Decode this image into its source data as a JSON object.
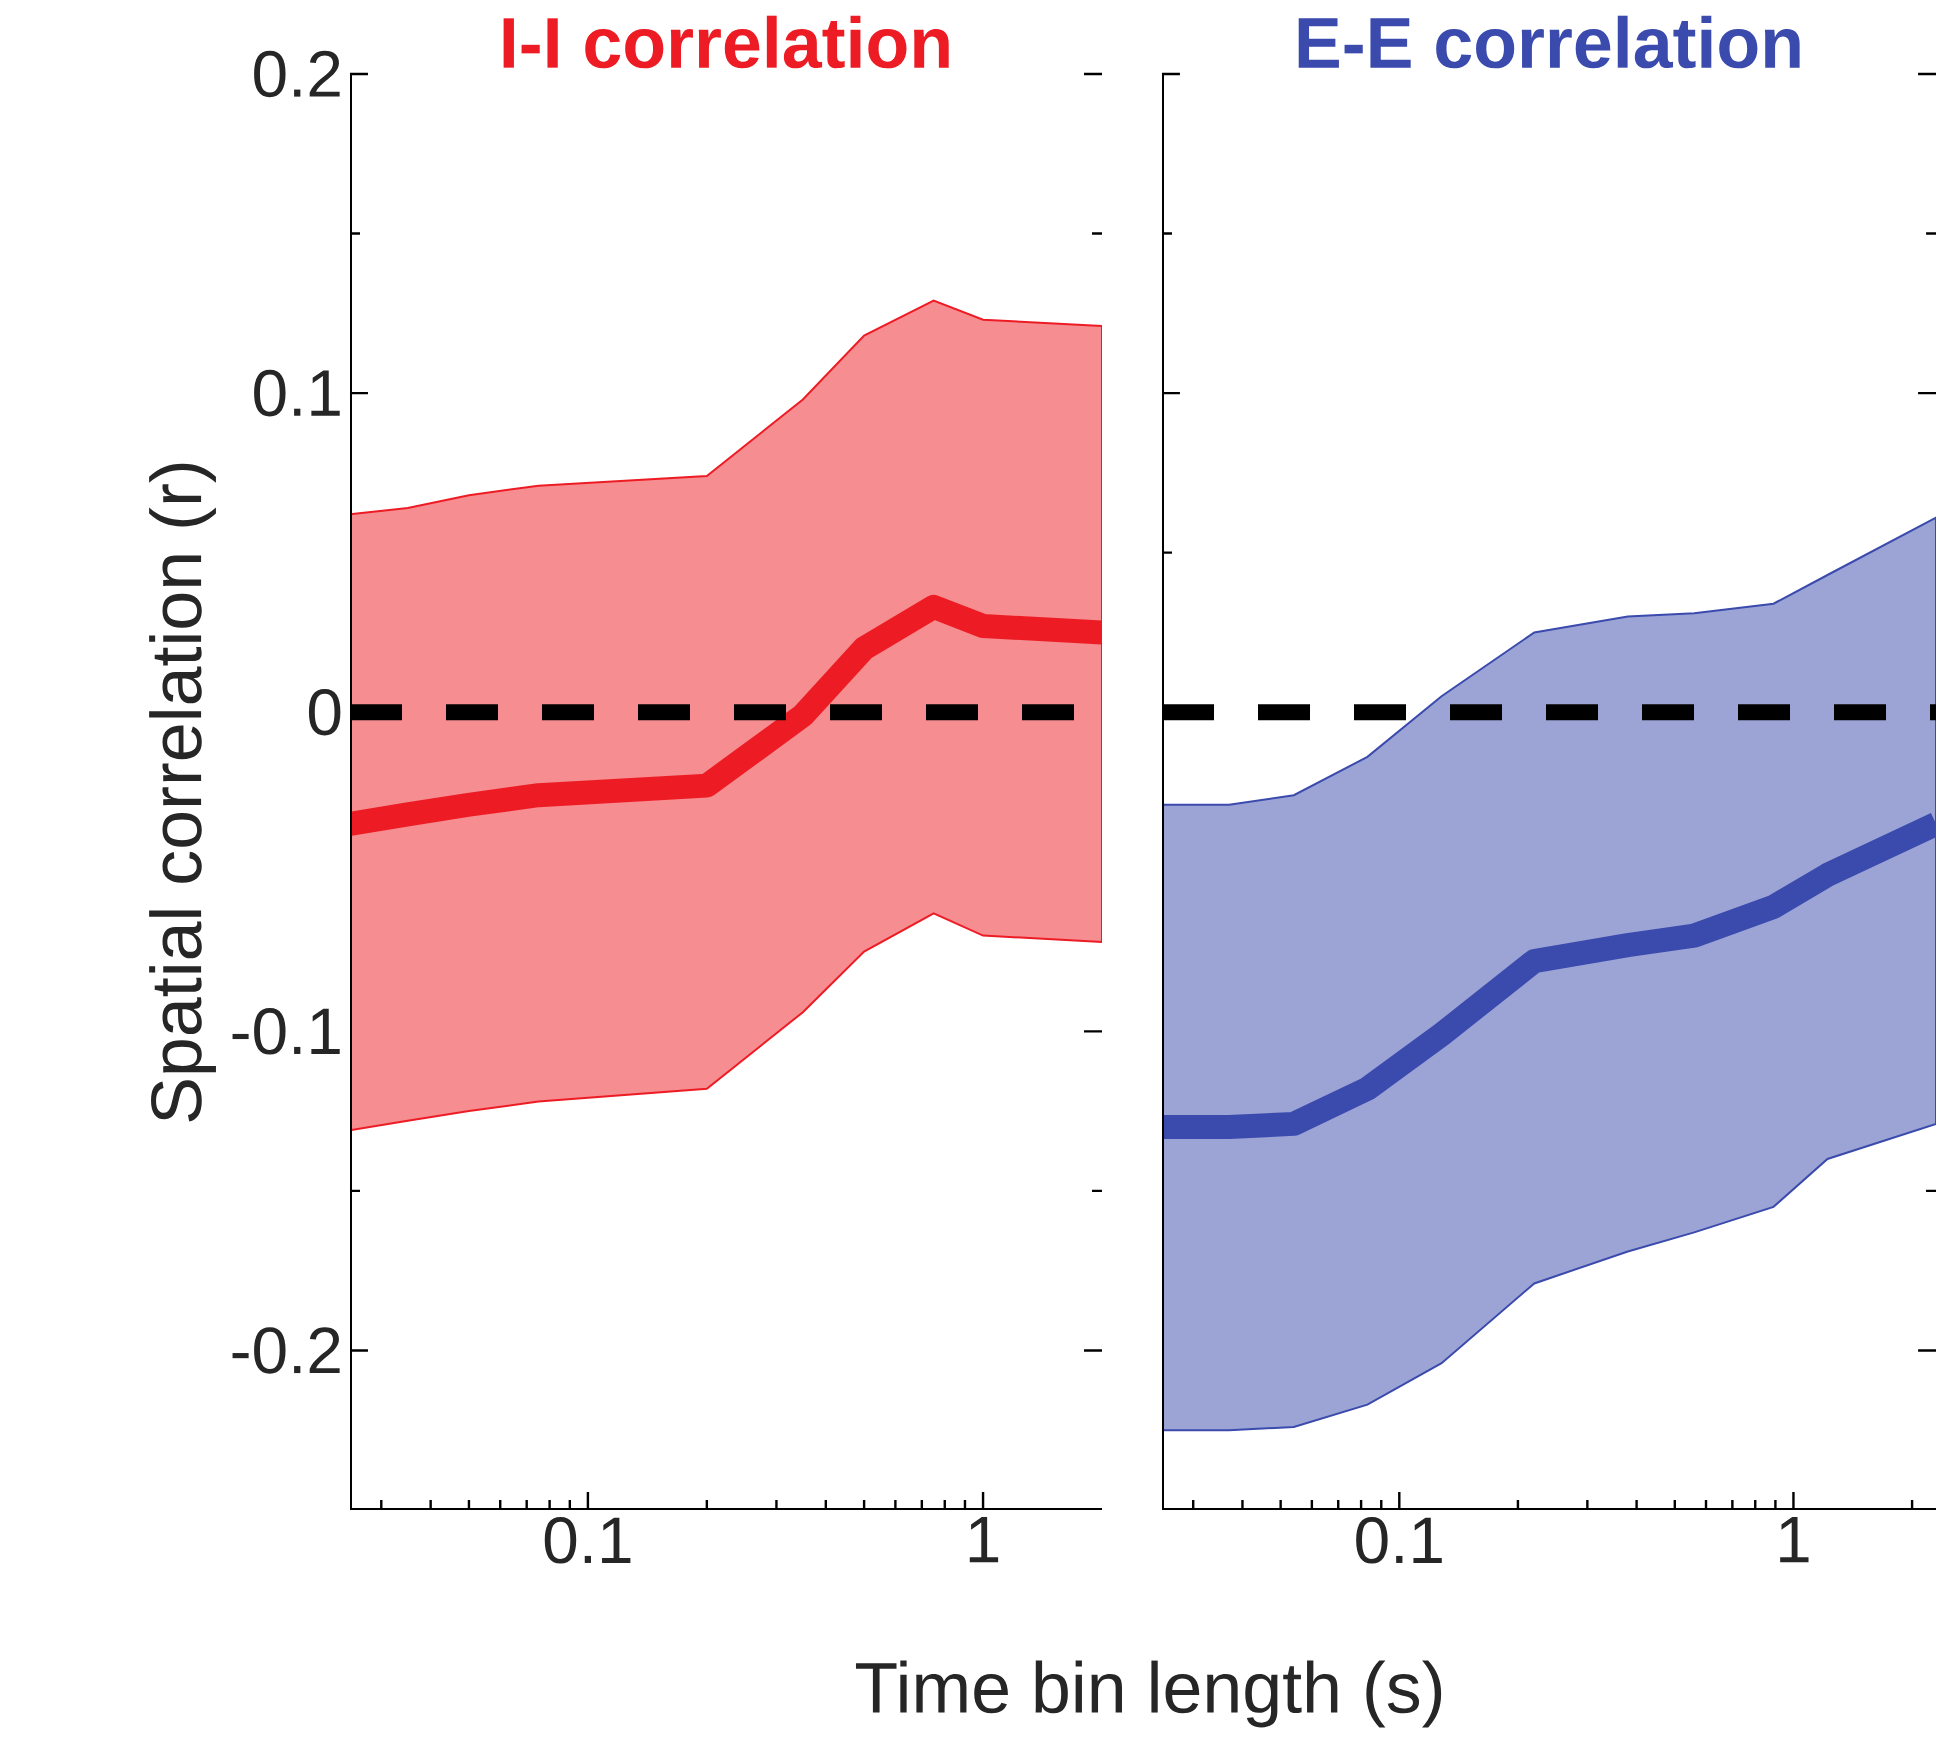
{
  "chart_data": [
    {
      "type": "line",
      "title": "I-I correlation",
      "xlabel": "Time bin length (s)",
      "ylabel": "Spatial correlation (r)",
      "log": "x",
      "xlim": [
        0.025,
        2
      ],
      "ylim": [
        -0.25,
        0.2
      ],
      "xticks": [
        {
          "value": 0.03,
          "label": null
        },
        {
          "value": 0.04,
          "label": null
        },
        {
          "value": 0.05,
          "label": null
        },
        {
          "value": 0.06,
          "label": null
        },
        {
          "value": 0.07,
          "label": null
        },
        {
          "value": 0.08,
          "label": null
        },
        {
          "value": 0.09,
          "label": null
        },
        0.1,
        {
          "value": 0.2,
          "label": null
        },
        {
          "value": 0.3,
          "label": null
        },
        {
          "value": 0.4,
          "label": null
        },
        {
          "value": 0.5,
          "label": null
        },
        {
          "value": 0.6,
          "label": null
        },
        {
          "value": 0.7,
          "label": null
        },
        {
          "value": 0.8,
          "label": null
        },
        {
          "value": 0.9,
          "label": null
        },
        1
      ],
      "yticks": [
        -0.2,
        {
          "value": -0.15,
          "label": null
        },
        -0.1,
        {
          "value": -0.05,
          "label": null
        },
        0,
        {
          "value": 0.05,
          "label": null
        },
        0.1,
        {
          "value": 0.15,
          "label": null
        },
        0.2
      ],
      "ref_lines": [
        {
          "axis": "y",
          "value": 0,
          "color": "#000000",
          "line_style": "dashed"
        }
      ],
      "x": [
        0.025,
        0.035,
        0.05,
        0.075,
        0.2,
        0.35,
        0.5,
        0.75,
        1,
        2
      ],
      "series": [
        {
          "color": "#ed1c24",
          "values": [
            -0.035,
            -0.032,
            -0.029,
            -0.026,
            -0.023,
            -0.001,
            0.02,
            0.033,
            0.027,
            0.025
          ],
          "lower": [
            -0.131,
            -0.128,
            -0.125,
            -0.122,
            -0.118,
            -0.094,
            -0.075,
            -0.063,
            -0.07,
            -0.072
          ],
          "upper": [
            0.062,
            0.064,
            0.068,
            0.071,
            0.074,
            0.098,
            0.118,
            0.129,
            0.123,
            0.121
          ]
        }
      ]
    },
    {
      "type": "line",
      "title": "E-E correlation",
      "log": "x",
      "tick_labels": "x",
      "xlim": [
        0.025,
        2.3
      ],
      "ylim": [
        -0.25,
        0.2
      ],
      "xticks": [
        {
          "value": 0.03,
          "label": null
        },
        {
          "value": 0.04,
          "label": null
        },
        {
          "value": 0.05,
          "label": null
        },
        {
          "value": 0.06,
          "label": null
        },
        {
          "value": 0.07,
          "label": null
        },
        {
          "value": 0.08,
          "label": null
        },
        {
          "value": 0.09,
          "label": null
        },
        0.1,
        {
          "value": 0.2,
          "label": null
        },
        {
          "value": 0.3,
          "label": null
        },
        {
          "value": 0.4,
          "label": null
        },
        {
          "value": 0.5,
          "label": null
        },
        {
          "value": 0.6,
          "label": null
        },
        {
          "value": 0.7,
          "label": null
        },
        {
          "value": 0.8,
          "label": null
        },
        {
          "value": 0.9,
          "label": null
        },
        1,
        {
          "value": 2,
          "label": null
        }
      ],
      "yticks": [
        -0.2,
        {
          "value": -0.15,
          "label": null
        },
        -0.1,
        {
          "value": -0.05,
          "label": null
        },
        0,
        {
          "value": 0.05,
          "label": null
        },
        0.1,
        {
          "value": 0.15,
          "label": null
        },
        0.2
      ],
      "ref_lines": [
        {
          "axis": "y",
          "value": 0,
          "color": "#000000",
          "line_style": "dashed"
        }
      ],
      "x": [
        0.025,
        0.037,
        0.054,
        0.083,
        0.128,
        0.22,
        0.38,
        0.56,
        0.89,
        1.22,
        2.3
      ],
      "series": [
        {
          "color": "#3a4aad",
          "values": [
            -0.13,
            -0.13,
            -0.129,
            -0.118,
            -0.101,
            -0.078,
            -0.073,
            -0.07,
            -0.061,
            -0.051,
            -0.035
          ],
          "lower": [
            -0.225,
            -0.225,
            -0.224,
            -0.217,
            -0.204,
            -0.179,
            -0.169,
            -0.163,
            -0.155,
            -0.14,
            -0.129
          ],
          "upper": [
            -0.029,
            -0.029,
            -0.026,
            -0.014,
            0.005,
            0.025,
            0.03,
            0.031,
            0.034,
            0.043,
            0.061
          ]
        }
      ]
    }
  ]
}
